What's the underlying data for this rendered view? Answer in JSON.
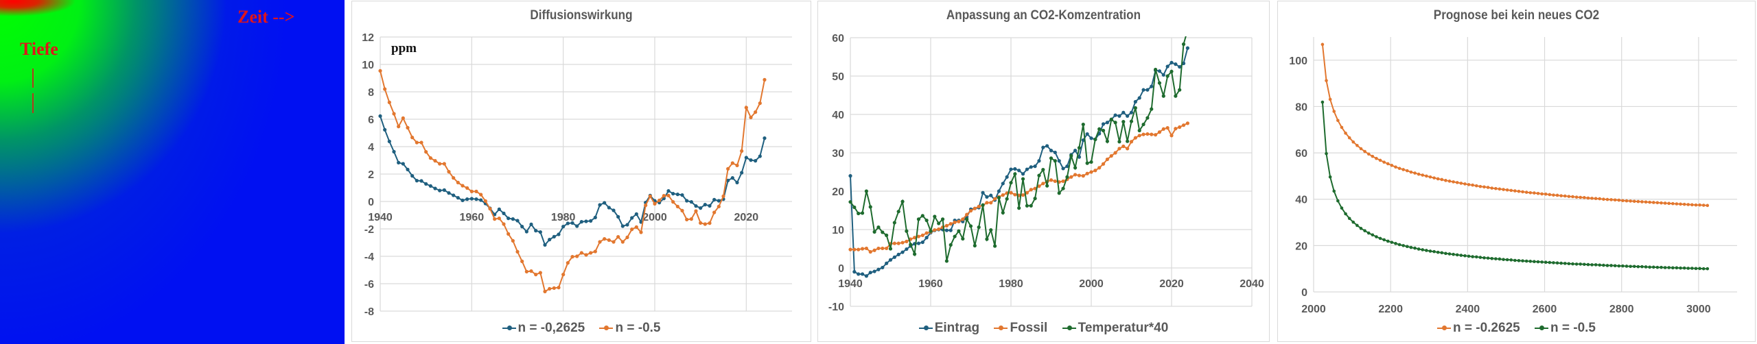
{
  "heatmap": {
    "time_label": "Zeit -->",
    "depth_label": "Tiefe"
  },
  "colors": {
    "blue": "#1f5f7f",
    "orange": "#e2772f",
    "green": "#1e6b2e",
    "grid": "#d9d9d9",
    "text": "#595959"
  },
  "chart_data": [
    {
      "type": "line",
      "title": "Diffusionswirkung",
      "annotation": "ppm",
      "xlabel": "",
      "ylabel": "",
      "xlim": [
        1940,
        2030
      ],
      "ylim": [
        -8,
        12
      ],
      "xticks": [
        1940,
        1960,
        1980,
        2000,
        2020
      ],
      "yticks": [
        -8,
        -6,
        -4,
        -2,
        0,
        2,
        4,
        6,
        8,
        10,
        12
      ],
      "grid": true,
      "legend": "bottom",
      "x": [
        1940,
        1941,
        1942,
        1943,
        1944,
        1945,
        1946,
        1947,
        1948,
        1949,
        1950,
        1951,
        1952,
        1953,
        1954,
        1955,
        1956,
        1957,
        1958,
        1959,
        1960,
        1961,
        1962,
        1963,
        1964,
        1965,
        1966,
        1967,
        1968,
        1969,
        1970,
        1971,
        1972,
        1973,
        1974,
        1975,
        1976,
        1977,
        1978,
        1979,
        1980,
        1981,
        1982,
        1983,
        1984,
        1985,
        1986,
        1987,
        1988,
        1989,
        1990,
        1991,
        1992,
        1993,
        1994,
        1995,
        1996,
        1997,
        1998,
        1999,
        2000,
        2001,
        2002,
        2003,
        2004,
        2005,
        2006,
        2007,
        2008,
        2009,
        2010,
        2011,
        2012,
        2013,
        2014,
        2015,
        2016,
        2017,
        2018,
        2019,
        2020,
        2021,
        2022,
        2023,
        2024
      ],
      "series": [
        {
          "name": "n = -0,2625",
          "color": "#1f5f7f",
          "values": [
            6.23,
            5.23,
            4.38,
            3.63,
            2.83,
            2.75,
            2.33,
            1.87,
            1.52,
            1.5,
            1.28,
            1.13,
            0.95,
            0.8,
            0.83,
            0.62,
            0.45,
            0.27,
            0.08,
            0.17,
            0.2,
            0.17,
            0.1,
            -0.15,
            -0.5,
            -0.95,
            -0.57,
            -0.87,
            -1.23,
            -1.28,
            -1.4,
            -1.83,
            -2.2,
            -1.67,
            -2.13,
            -2.23,
            -3.17,
            -2.78,
            -2.57,
            -2.4,
            -1.83,
            -1.6,
            -1.57,
            -1.8,
            -1.48,
            -1.45,
            -1.42,
            -1.17,
            -0.25,
            -0.1,
            -0.45,
            -0.65,
            -1.12,
            -1.8,
            -1.7,
            -1.2,
            -0.92,
            -1.5,
            -0.08,
            0.43,
            0.05,
            -0.08,
            0.22,
            0.77,
            0.57,
            0.52,
            0.47,
            0.05,
            -0.03,
            -0.33,
            -0.48,
            -0.23,
            -0.32,
            0.13,
            0.05,
            0.17,
            1.53,
            1.72,
            1.38,
            2.1,
            3.2,
            3.02,
            2.97,
            3.3,
            4.62
          ]
        },
        {
          "name": "n = -0.5",
          "color": "#e2772f",
          "values": [
            9.53,
            8.2,
            7.23,
            6.4,
            5.47,
            6.08,
            5.38,
            4.67,
            4.3,
            4.3,
            3.62,
            3.17,
            2.97,
            2.75,
            2.75,
            2.17,
            1.72,
            1.38,
            1.15,
            0.98,
            0.73,
            0.73,
            0.5,
            0.03,
            -0.53,
            -1.28,
            -1.23,
            -1.65,
            -2.37,
            -2.87,
            -3.67,
            -4.37,
            -5.12,
            -5.08,
            -5.33,
            -5.2,
            -6.57,
            -6.37,
            -6.32,
            -6.28,
            -5.33,
            -4.48,
            -4.03,
            -4.0,
            -3.75,
            -3.9,
            -3.75,
            -3.65,
            -2.95,
            -2.73,
            -2.82,
            -2.95,
            -2.58,
            -2.95,
            -2.62,
            -2.03,
            -1.87,
            -2.25,
            -0.28,
            0.38,
            -0.17,
            0.08,
            0.42,
            0.43,
            -0.03,
            -0.37,
            -0.67,
            -1.32,
            -1.28,
            -0.7,
            -1.57,
            -1.65,
            -1.58,
            -0.8,
            -0.37,
            0.38,
            2.38,
            2.8,
            2.63,
            3.68,
            6.85,
            6.13,
            6.52,
            7.17,
            8.88
          ]
        }
      ]
    },
    {
      "type": "line",
      "title": "Anpassung  an CO2-Komzentration",
      "xlabel": "",
      "ylabel": "",
      "xlim": [
        1940,
        2040
      ],
      "ylim": [
        -10,
        60
      ],
      "xticks": [
        1940,
        1960,
        1980,
        2000,
        2020,
        2040
      ],
      "yticks": [
        -10,
        0,
        10,
        20,
        30,
        40,
        50,
        60
      ],
      "grid": true,
      "legend": "bottom",
      "x": [
        1940,
        1941,
        1942,
        1943,
        1944,
        1945,
        1946,
        1947,
        1948,
        1949,
        1950,
        1951,
        1952,
        1953,
        1954,
        1955,
        1956,
        1957,
        1958,
        1959,
        1960,
        1961,
        1962,
        1963,
        1964,
        1965,
        1966,
        1967,
        1968,
        1969,
        1970,
        1971,
        1972,
        1973,
        1974,
        1975,
        1976,
        1977,
        1978,
        1979,
        1980,
        1981,
        1982,
        1983,
        1984,
        1985,
        1986,
        1987,
        1988,
        1989,
        1990,
        1991,
        1992,
        1993,
        1994,
        1995,
        1996,
        1997,
        1998,
        1999,
        2000,
        2001,
        2002,
        2003,
        2004,
        2005,
        2006,
        2007,
        2008,
        2009,
        2010,
        2011,
        2012,
        2013,
        2014,
        2015,
        2016,
        2017,
        2018,
        2019,
        2020,
        2021,
        2022,
        2023,
        2024
      ],
      "series": [
        {
          "name": "Eintrag",
          "color": "#1f5f7f",
          "values": [
            24.0,
            -1.0,
            -1.6,
            -1.6,
            -2.1,
            -1.2,
            -0.9,
            -0.4,
            0.1,
            1.2,
            2.1,
            2.8,
            3.5,
            4.1,
            4.9,
            5.7,
            6.3,
            6.4,
            6.7,
            7.9,
            9.2,
            9.8,
            10.0,
            10.0,
            9.8,
            9.8,
            12.4,
            12.4,
            12.1,
            13.3,
            15.3,
            15.5,
            15.7,
            19.6,
            18.5,
            18.9,
            17.7,
            20.0,
            22.0,
            23.7,
            25.7,
            25.8,
            25.4,
            24.5,
            25.7,
            26.3,
            26.5,
            27.9,
            31.4,
            31.8,
            30.6,
            30.1,
            27.9,
            25.9,
            26.5,
            29.5,
            30.6,
            28.9,
            33.3,
            34.9,
            33.8,
            33.5,
            35.0,
            37.5,
            37.9,
            38.7,
            39.8,
            39.6,
            40.5,
            39.6,
            40.5,
            43.3,
            44.3,
            46.4,
            46.4,
            47.3,
            51.5,
            51.3,
            50.3,
            52.5,
            53.5,
            53.1,
            52.4,
            53.3,
            57.3
          ]
        },
        {
          "name": "Fossil",
          "color": "#e2772f",
          "values": [
            4.8,
            4.8,
            4.8,
            5.0,
            5.1,
            4.2,
            4.6,
            5.1,
            5.1,
            5.1,
            6.3,
            6.4,
            6.4,
            6.6,
            6.9,
            7.5,
            7.9,
            8.2,
            8.5,
            9.1,
            9.4,
            9.9,
            10.1,
            10.6,
            11.0,
            11.5,
            11.9,
            12.1,
            12.7,
            13.9,
            14.9,
            15.5,
            16.0,
            16.3,
            17.0,
            17.0,
            18.0,
            18.5,
            19.0,
            19.5,
            19.6,
            19.1,
            18.9,
            19.0,
            19.6,
            20.4,
            20.7,
            21.3,
            22.0,
            22.5,
            22.9,
            22.6,
            22.4,
            22.6,
            23.1,
            23.7,
            24.3,
            24.1,
            24.0,
            24.6,
            25.0,
            25.4,
            26.1,
            27.1,
            28.3,
            29.2,
            30.0,
            31.1,
            31.7,
            31.1,
            32.9,
            33.9,
            34.5,
            34.8,
            34.9,
            34.8,
            34.7,
            35.4,
            36.2,
            36.5,
            34.5,
            36.3,
            36.7,
            37.2,
            37.7
          ]
        },
        {
          "name": "Temperatur*40",
          "color": "#1e6b2e",
          "values": [
            17.2,
            15.8,
            14.2,
            14.3,
            20.0,
            15.9,
            9.4,
            10.6,
            9.3,
            8.5,
            5.0,
            11.8,
            14.7,
            17.3,
            9.6,
            6.1,
            3.6,
            12.7,
            13.6,
            12.4,
            9.6,
            13.4,
            11.6,
            12.7,
            1.8,
            6.0,
            8.2,
            9.6,
            7.6,
            12.7,
            10.9,
            5.8,
            10.6,
            16.4,
            7.5,
            9.9,
            5.7,
            18.3,
            14.4,
            18.0,
            22.2,
            24.5,
            15.6,
            23.2,
            16.2,
            16.2,
            18.1,
            24.1,
            25.6,
            21.4,
            28.6,
            27.9,
            19.5,
            20.7,
            23.7,
            29.2,
            26.1,
            31.3,
            37.4,
            27.3,
            27.6,
            33.5,
            36.2,
            35.8,
            33.0,
            38.7,
            37.9,
            32.9,
            38.1,
            33.0,
            38.2,
            41.7,
            35.8,
            37.4,
            39.1,
            41.4,
            51.7,
            48.2,
            44.8,
            50.0,
            51.2,
            44.8,
            46.4,
            58.3,
            62.0
          ]
        }
      ]
    },
    {
      "type": "line",
      "title": "Prognose bei kein neues CO2",
      "xlabel": "",
      "ylabel": "",
      "xlim": [
        2000,
        3100
      ],
      "ylim": [
        0,
        110
      ],
      "xticks": [
        2000,
        2200,
        2400,
        2600,
        2800,
        3000
      ],
      "yticks": [
        0,
        20,
        40,
        60,
        80,
        100
      ],
      "grid": true,
      "legend": "bottom",
      "x_start": 2023,
      "x_step": 10,
      "series": [
        {
          "name": "n = -0.2625",
          "color": "#e2772f",
          "values": [
            106.8,
            91.2,
            83.1,
            77.9,
            74.0,
            71.0,
            68.5,
            66.5,
            64.7,
            63.2,
            61.8,
            60.6,
            59.5,
            58.5,
            57.6,
            56.8,
            56.0,
            55.3,
            54.6,
            53.9,
            53.3,
            52.8,
            52.3,
            51.7,
            51.3,
            50.8,
            50.4,
            50.0,
            49.6,
            49.2,
            48.8,
            48.5,
            48.1,
            47.8,
            47.5,
            47.2,
            46.9,
            46.6,
            46.3,
            46.1,
            45.8,
            45.5,
            45.3,
            45.1,
            44.8,
            44.6,
            44.4,
            44.2,
            44.0,
            43.8,
            43.6,
            43.4,
            43.2,
            43.0,
            42.8,
            42.7,
            42.5,
            42.3,
            42.2,
            42.0,
            41.8,
            41.7,
            41.5,
            41.4,
            41.2,
            41.1,
            40.9,
            40.8,
            40.7,
            40.5,
            40.4,
            40.3,
            40.2,
            40.0,
            39.9,
            39.8,
            39.7,
            39.6,
            39.4,
            39.3,
            39.2,
            39.1,
            39.0,
            38.9,
            38.8,
            38.7,
            38.6,
            38.5,
            38.4,
            38.3,
            38.2,
            38.1,
            38.0,
            37.9,
            37.8,
            37.7,
            37.6,
            37.5,
            37.5,
            37.4,
            37.3
          ]
        },
        {
          "name": "n = -0.5",
          "color": "#1e6b2e",
          "values": [
            81.9,
            59.7,
            49.6,
            43.5,
            39.3,
            36.2,
            33.7,
            31.7,
            30.1,
            28.7,
            27.4,
            26.4,
            25.4,
            24.6,
            23.8,
            23.1,
            22.5,
            21.9,
            21.4,
            20.9,
            20.4,
            20.0,
            19.6,
            19.2,
            18.9,
            18.5,
            18.2,
            17.9,
            17.6,
            17.4,
            17.1,
            16.9,
            16.6,
            16.4,
            16.2,
            16.0,
            15.8,
            15.6,
            15.4,
            15.2,
            15.1,
            14.9,
            14.7,
            14.6,
            14.4,
            14.3,
            14.2,
            14.0,
            13.9,
            13.8,
            13.6,
            13.5,
            13.4,
            13.3,
            13.2,
            13.1,
            13.0,
            12.9,
            12.8,
            12.7,
            12.6,
            12.5,
            12.4,
            12.3,
            12.2,
            12.1,
            12.0,
            12.0,
            11.9,
            11.8,
            11.7,
            11.7,
            11.6,
            11.5,
            11.4,
            11.4,
            11.3,
            11.2,
            11.2,
            11.1,
            11.0,
            11.0,
            10.9,
            10.9,
            10.8,
            10.7,
            10.7,
            10.6,
            10.6,
            10.5,
            10.5,
            10.4,
            10.4,
            10.3,
            10.3,
            10.2,
            10.2,
            10.1,
            10.1,
            10.0,
            10.0
          ]
        }
      ]
    }
  ]
}
